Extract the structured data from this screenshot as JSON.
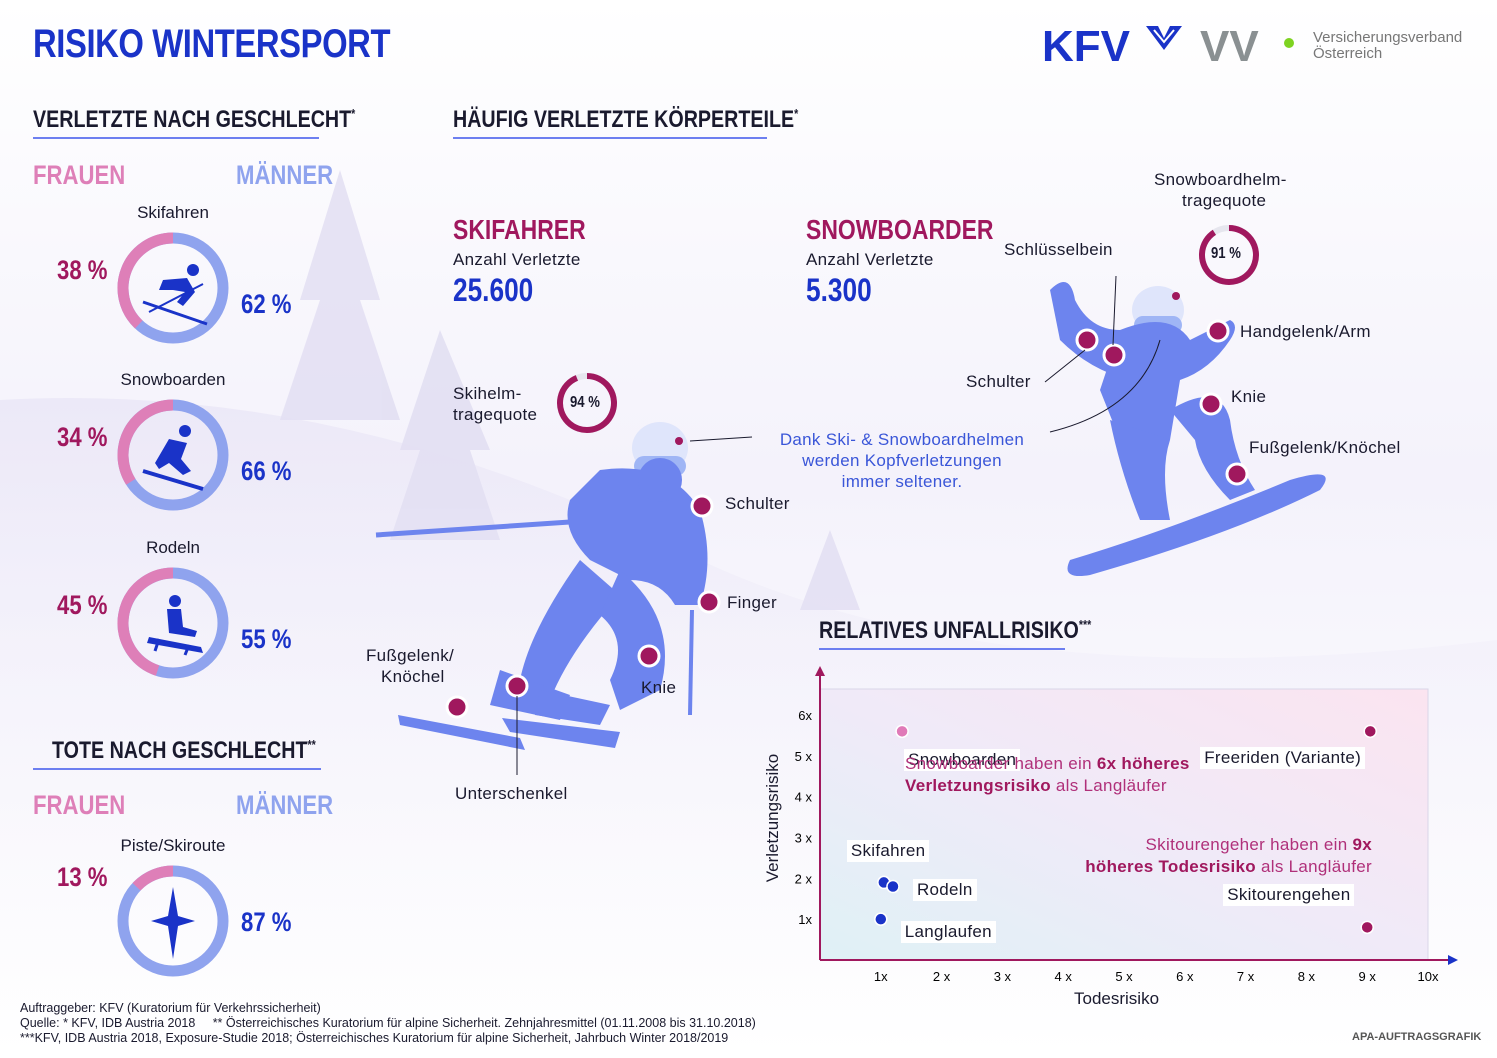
{
  "header": {
    "title": "RISIKO WINTERSPORT",
    "logo_kfv": "KFV",
    "logo_vv": "VV",
    "vv_name_line1": "Versicherungsverband",
    "vv_name_line2": "Österreich"
  },
  "gender_injured": {
    "title": "VERLETZTE NACH GESCHLECHT",
    "star": "*",
    "female_label": "FRAUEN",
    "male_label": "MÄNNER",
    "sports": [
      {
        "name": "Skifahren",
        "female_pct": 38,
        "male_pct": 62,
        "female_text": "38 %",
        "male_text": "62 %",
        "icon": "skier-icon"
      },
      {
        "name": "Snowboarden",
        "female_pct": 34,
        "male_pct": 66,
        "female_text": "34 %",
        "male_text": "66 %",
        "icon": "snowboarder-icon"
      },
      {
        "name": "Rodeln",
        "female_pct": 45,
        "male_pct": 55,
        "female_text": "45 %",
        "male_text": "55 %",
        "icon": "sled-icon"
      }
    ]
  },
  "gender_deaths": {
    "title": "TOTE NACH GESCHLECHT",
    "star": "**",
    "female_label": "FRAUEN",
    "male_label": "MÄNNER",
    "item": {
      "name": "Piste/Skiroute",
      "female_pct": 13,
      "male_pct": 87,
      "female_text": "13 %",
      "male_text": "87 %",
      "icon": "compass-star-icon"
    }
  },
  "body_parts": {
    "title": "HÄUFIG VERLETZTE KÖRPERTEILE",
    "star": "*",
    "skier": {
      "title": "SKIFAHRER",
      "count_label": "Anzahl Verletzte",
      "count": "25.600",
      "helmet_label_line1": "Skihelm-",
      "helmet_label_line2": "tragequote",
      "helmet_pct": 94,
      "helmet_text": "94 %",
      "labels": {
        "shoulder": "Schulter",
        "finger": "Finger",
        "knee": "Knie",
        "ankle_line1": "Fußgelenk/",
        "ankle_line2": "Knöchel",
        "lower_leg": "Unterschenkel"
      }
    },
    "snowboarder": {
      "title": "SNOWBOARDER",
      "count_label": "Anzahl Verletzte",
      "count": "5.300",
      "helmet_label_line1": "Snowboardhelm-",
      "helmet_label_line2": "tragequote",
      "helmet_pct": 91,
      "helmet_text": "91 %",
      "labels": {
        "collarbone": "Schlüsselbein",
        "shoulder": "Schulter",
        "wrist": "Handgelenk/Arm",
        "knee": "Knie",
        "ankle": "Fußgelenk/Knöchel"
      }
    },
    "helmet_note_line1": "Dank Ski- & Snowboardhelmen",
    "helmet_note_line2": "werden Kopfverletzungen",
    "helmet_note_line3": "immer seltener."
  },
  "chart_data": {
    "type": "scatter",
    "title": "RELATIVES UNFALLRISIKO",
    "title_star": "***",
    "xlabel": "Todesrisiko",
    "ylabel": "Verletzungsrisiko",
    "xlim": [
      0,
      10
    ],
    "ylim": [
      0,
      6
    ],
    "x_ticks": [
      "1x",
      "2 x",
      "3 x",
      "4 x",
      "5 x",
      "6 x",
      "7 x",
      "8 x",
      "9 x",
      "10x"
    ],
    "y_ticks": [
      "1x",
      "2 x",
      "3 x",
      "4 x",
      "5 x",
      "6x"
    ],
    "points": [
      {
        "name": "Snowboarden",
        "x": 1.35,
        "y": 5.6,
        "color": "#e07ab8"
      },
      {
        "name": "Freeriden (Variante)",
        "x": 9.05,
        "y": 5.6,
        "color": "#a0185e"
      },
      {
        "name": "Skifahren",
        "x": 1.05,
        "y": 1.9,
        "color": "#1a33c8"
      },
      {
        "name": "Rodeln",
        "x": 1.2,
        "y": 1.8,
        "color": "#1a33c8"
      },
      {
        "name": "Langlaufen",
        "x": 1.0,
        "y": 1.0,
        "color": "#1a33c8"
      },
      {
        "name": "Skitourengehen",
        "x": 9.0,
        "y": 0.8,
        "color": "#a0185e"
      }
    ],
    "annotations": {
      "snow_pre": "Snowboarder haben ein ",
      "snow_bold": "6x höheres",
      "snow_bold2": "Verletzungsrisiko",
      "snow_post": " als Langläufer",
      "tour_pre": "Skitourengeher haben ein ",
      "tour_bold": "9x",
      "tour_bold2": "höheres Todesrisiko",
      "tour_post": " als Langläufer"
    }
  },
  "footer": {
    "line1": "Auftraggeber: KFV (Kuratorium für Verkehrssicherheit)",
    "line2": "Quelle: * KFV, IDB Austria 2018     ** Österreichisches Kuratorium für alpine Sicherheit. Zehnjahresmittel (01.11.2008 bis 31.10.2018)",
    "line3": "***KFV, IDB Austria 2018, Exposure-Studie 2018; Österreichisches Kuratorium für alpine Sicherheit, Jahrbuch Winter 2018/2019",
    "credit": "APA-AUFTRAGSGRAFIK"
  },
  "colors": {
    "female": "#de7fb8",
    "male": "#8fa3ee",
    "accent_blue": "#1a33c8",
    "accent_magenta": "#a0185e",
    "figure_blue": "#6d84ee"
  }
}
